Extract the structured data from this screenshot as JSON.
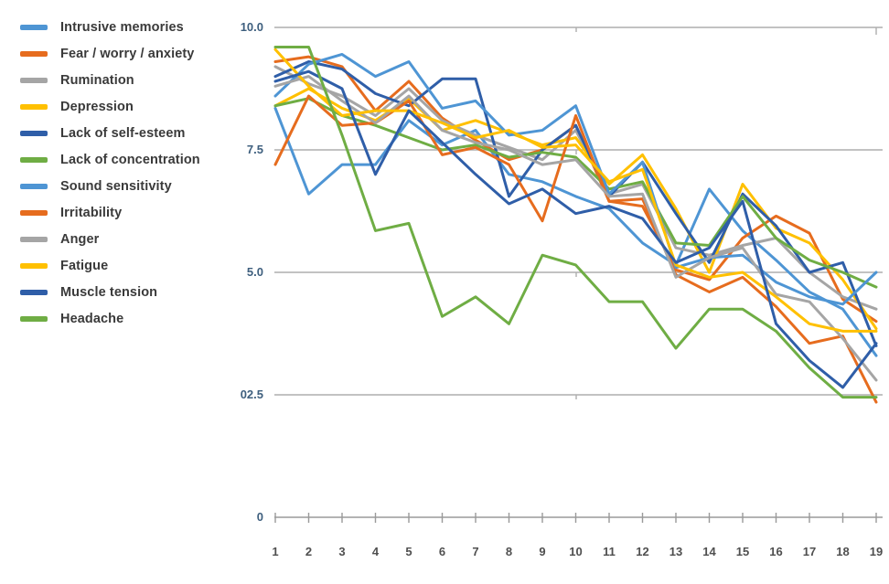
{
  "chart_data": {
    "type": "line",
    "title": "",
    "xlabel": "",
    "ylabel": "",
    "x": [
      1,
      2,
      3,
      4,
      5,
      6,
      7,
      8,
      9,
      10,
      11,
      12,
      13,
      14,
      15,
      16,
      17,
      18,
      19
    ],
    "x_tick_labels": [
      "1",
      "2",
      "3",
      "4",
      "5",
      "6",
      "7",
      "8",
      "9",
      "10",
      "11",
      "12",
      "13",
      "14",
      "15",
      "16",
      "17",
      "18",
      "19"
    ],
    "y_ticks": [
      {
        "text": "10.0",
        "value": 10
      },
      {
        "text": "7.5",
        "value": 7.5
      },
      {
        "text": "5.0",
        "value": 5
      },
      {
        "text": "02.5",
        "value": 2.5
      },
      {
        "text": "0",
        "value": 0
      }
    ],
    "ylim": [
      0,
      10
    ],
    "grid": "horizontal",
    "legend_position": "top-left",
    "series": [
      {
        "name": "Intrusive memories",
        "color": "#4e95d4",
        "values": [
          8.35,
          6.6,
          7.2,
          7.2,
          8.1,
          7.6,
          7.9,
          7.0,
          6.85,
          6.55,
          6.3,
          5.6,
          5.15,
          6.7,
          5.85,
          5.25,
          4.6,
          4.25,
          3.3
        ]
      },
      {
        "name": "Fear / worry / anxiety",
        "color": "#e66c1e",
        "values": [
          9.3,
          9.4,
          9.2,
          8.3,
          8.9,
          8.15,
          7.7,
          7.3,
          7.5,
          8.0,
          6.45,
          6.35,
          5.05,
          4.85,
          5.7,
          6.15,
          5.8,
          4.45,
          4.0
        ]
      },
      {
        "name": "Rumination",
        "color": "#a5a5a5",
        "values": [
          9.2,
          8.85,
          8.6,
          8.2,
          8.75,
          8.1,
          7.8,
          7.55,
          7.3,
          7.9,
          6.6,
          6.8,
          5.5,
          5.35,
          5.55,
          5.7,
          5.0,
          4.5,
          4.25
        ]
      },
      {
        "name": "Depression",
        "color": "#ffc000",
        "values": [
          8.4,
          8.75,
          8.35,
          8.1,
          8.55,
          7.9,
          8.1,
          7.85,
          7.6,
          7.75,
          6.8,
          7.4,
          6.3,
          5.0,
          6.8,
          5.9,
          5.6,
          4.85,
          3.85
        ]
      },
      {
        "name": "Lack of self-esteem",
        "color": "#2f5ea8",
        "values": [
          9.0,
          9.3,
          9.15,
          8.65,
          8.4,
          8.95,
          8.95,
          6.55,
          7.5,
          8.0,
          6.55,
          7.25,
          6.2,
          5.2,
          6.6,
          5.95,
          5.0,
          5.2,
          3.5
        ]
      },
      {
        "name": "Lack of concentration",
        "color": "#6fad44",
        "values": [
          8.4,
          8.55,
          8.2,
          8.0,
          7.75,
          7.5,
          7.6,
          7.35,
          7.45,
          7.35,
          6.7,
          6.85,
          5.6,
          5.55,
          6.55,
          5.7,
          5.25,
          5.0,
          4.7
        ]
      },
      {
        "name": "Sound sensitivity",
        "color": "#4e95d4",
        "values": [
          8.6,
          9.25,
          9.45,
          9.0,
          9.3,
          8.35,
          8.5,
          7.8,
          7.9,
          8.4,
          6.6,
          7.25,
          5.1,
          5.3,
          5.35,
          4.8,
          4.5,
          4.35,
          5.0
        ]
      },
      {
        "name": "Irritability",
        "color": "#e66c1e",
        "values": [
          7.2,
          8.6,
          8.0,
          8.05,
          8.5,
          7.4,
          7.55,
          7.2,
          6.05,
          8.2,
          6.45,
          6.5,
          4.95,
          4.6,
          4.9,
          4.3,
          3.55,
          3.7,
          2.35
        ]
      },
      {
        "name": "Anger",
        "color": "#a5a5a5",
        "values": [
          8.8,
          9.0,
          8.5,
          8.05,
          8.6,
          7.9,
          7.65,
          7.5,
          7.2,
          7.3,
          6.55,
          6.6,
          4.9,
          5.3,
          5.5,
          4.55,
          4.4,
          3.65,
          2.8
        ]
      },
      {
        "name": "Fatigue",
        "color": "#ffc000",
        "values": [
          9.55,
          8.8,
          8.2,
          8.3,
          8.3,
          8.05,
          7.75,
          7.9,
          7.55,
          7.6,
          6.85,
          7.1,
          5.15,
          4.9,
          5.0,
          4.5,
          3.95,
          3.8,
          3.8
        ]
      },
      {
        "name": "Muscle tension",
        "color": "#2f5ea8",
        "values": [
          8.9,
          9.1,
          8.75,
          7.0,
          8.3,
          7.65,
          7.0,
          6.4,
          6.7,
          6.2,
          6.35,
          6.1,
          5.2,
          5.5,
          6.45,
          3.95,
          3.2,
          2.65,
          3.55
        ]
      },
      {
        "name": "Headache",
        "color": "#6fad44",
        "values": [
          9.6,
          9.6,
          7.8,
          5.85,
          6.0,
          4.1,
          4.5,
          3.95,
          5.35,
          5.15,
          4.4,
          4.4,
          3.45,
          4.25,
          4.25,
          3.8,
          3.05,
          2.45,
          2.45
        ]
      }
    ],
    "style": {
      "grid_color": "#aeaeae",
      "axis_color": "#9a9a9a",
      "line_width": 3
    }
  }
}
